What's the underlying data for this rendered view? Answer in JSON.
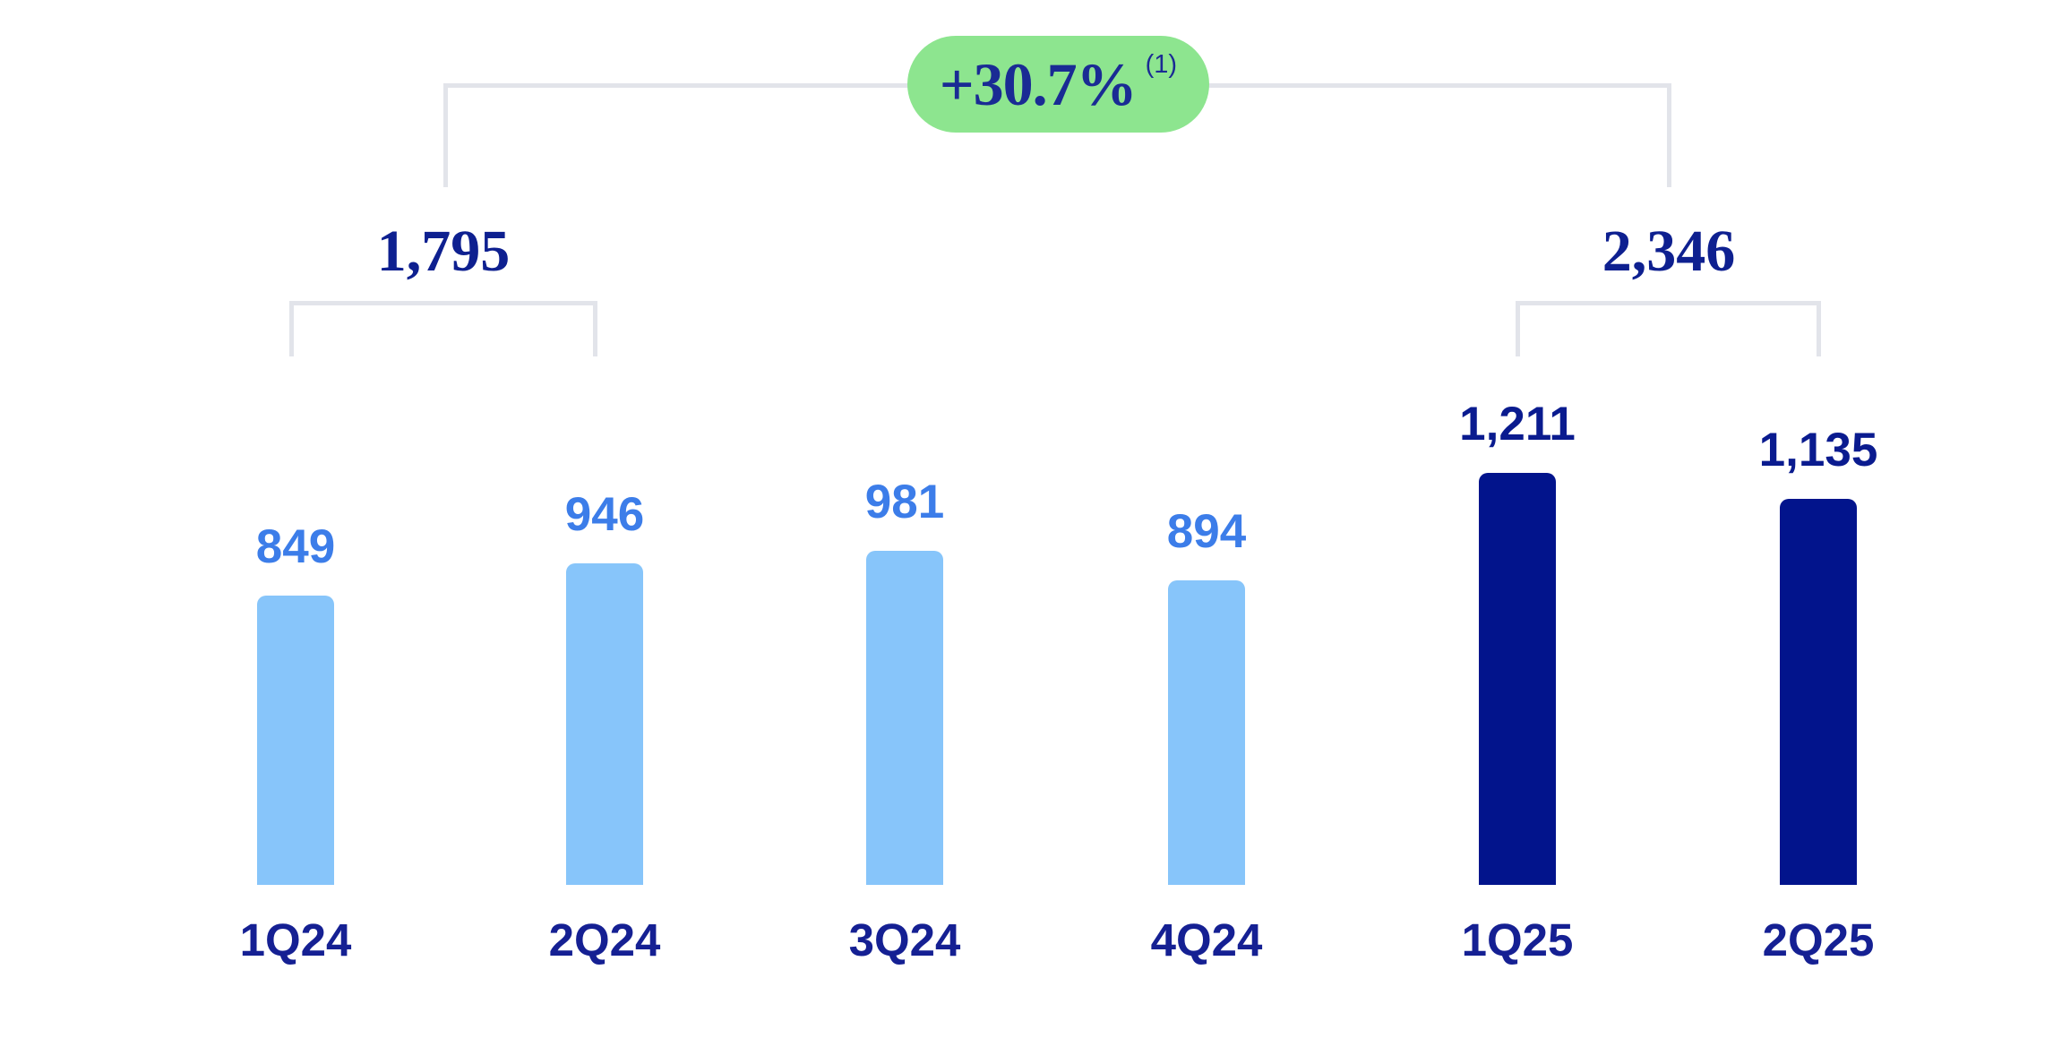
{
  "chart_data": {
    "type": "bar",
    "title": "",
    "xlabel": "",
    "ylabel": "",
    "categories": [
      "1Q24",
      "2Q24",
      "3Q24",
      "4Q24",
      "1Q25",
      "2Q25"
    ],
    "values": [
      849,
      946,
      981,
      894,
      1211,
      1135
    ],
    "bars": [
      {
        "category": "1Q24",
        "value": 849,
        "label": "849",
        "group": "2024"
      },
      {
        "category": "2Q24",
        "value": 946,
        "label": "946",
        "group": "2024"
      },
      {
        "category": "3Q24",
        "value": 981,
        "label": "981",
        "group": "2024"
      },
      {
        "category": "4Q24",
        "value": 894,
        "label": "894",
        "group": "2024"
      },
      {
        "category": "1Q25",
        "value": 1211,
        "label": "1,211",
        "group": "2025"
      },
      {
        "category": "2Q25",
        "value": 1135,
        "label": "1,135",
        "group": "2025"
      }
    ],
    "groups": {
      "2024": {
        "bar_color": "#87C5FA",
        "value_label_color": "#3C7DE9"
      },
      "2025": {
        "bar_color": "#02148C",
        "value_label_color": "#0A1B8F"
      }
    },
    "annotations": {
      "growth_badge": {
        "text": "+30.7%",
        "footnote_ref": "(1)"
      },
      "group_totals": [
        {
          "label": "1,795",
          "covers": [
            "1Q24",
            "2Q24"
          ]
        },
        {
          "label": "2,346",
          "covers": [
            "1Q25",
            "2Q25"
          ]
        }
      ]
    },
    "ylim": [
      0,
      1300
    ],
    "grid": false,
    "legend": false
  },
  "colors": {
    "badge_bg": "#8DE58F",
    "badge_text": "#1A2B94",
    "bracket_line": "#E2E4EA",
    "total_text": "#0E2090",
    "axis_label_text": "#152093",
    "background": "#FFFFFF"
  }
}
